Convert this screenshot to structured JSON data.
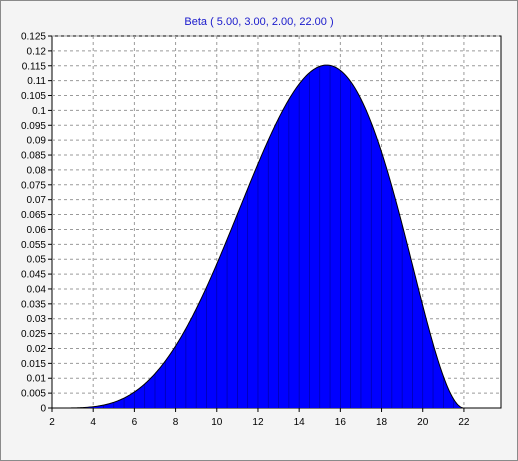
{
  "chart_data": {
    "type": "area",
    "title": "Beta ( 5.00, 3.00, 2.00, 22.00 )",
    "distribution": {
      "name": "Beta",
      "alpha": 5.0,
      "beta": 3.0,
      "min": 2.0,
      "max": 22.0
    },
    "xlabel": "",
    "ylabel": "",
    "xlim": [
      2,
      23.8
    ],
    "ylim": [
      0,
      0.125
    ],
    "x_ticks": [
      2,
      4,
      6,
      8,
      10,
      12,
      14,
      16,
      18,
      20,
      22
    ],
    "y_ticks": [
      0,
      0.005,
      0.01,
      0.015,
      0.02,
      0.025,
      0.03,
      0.035,
      0.04,
      0.045,
      0.05,
      0.055,
      0.06,
      0.065,
      0.07,
      0.075,
      0.08,
      0.085,
      0.09,
      0.095,
      0.1,
      0.105,
      0.11,
      0.115,
      0.12,
      0.125
    ],
    "y_tick_labels": [
      "0",
      "0.005",
      "0.01",
      "0.015",
      "0.02",
      "0.025",
      "0.03",
      "0.035",
      "0.04",
      "0.045",
      "0.05",
      "0.055",
      "0.06",
      "0.065",
      "0.07",
      "0.075",
      "0.08",
      "0.085",
      "0.09",
      "0.095",
      "0.1",
      "0.105",
      "0.11",
      "0.115",
      "0.12",
      "0.125"
    ],
    "x_tick_labels": [
      "2",
      "4",
      "6",
      "8",
      "10",
      "12",
      "14",
      "16",
      "18",
      "20",
      "22"
    ],
    "grid": true,
    "fill_color": "#0000ff",
    "series": [
      {
        "x": [
          2.0,
          3.0,
          4.0,
          5.0,
          6.0,
          7.0,
          8.0,
          9.0,
          10.0,
          11.0,
          12.0,
          13.0,
          14.0,
          15.0,
          15.33,
          16.0,
          17.0,
          18.0,
          19.0,
          20.0,
          21.0,
          22.0
        ],
        "values": [
          0.0,
          3e-05,
          0.0006,
          0.0027,
          0.0072,
          0.0148,
          0.0255,
          0.039,
          0.0538,
          0.0689,
          0.0826,
          0.0967,
          0.1075,
          0.1145,
          0.1152,
          0.1142,
          0.1054,
          0.0893,
          0.0672,
          0.0415,
          0.0161,
          0.0
        ]
      }
    ]
  }
}
